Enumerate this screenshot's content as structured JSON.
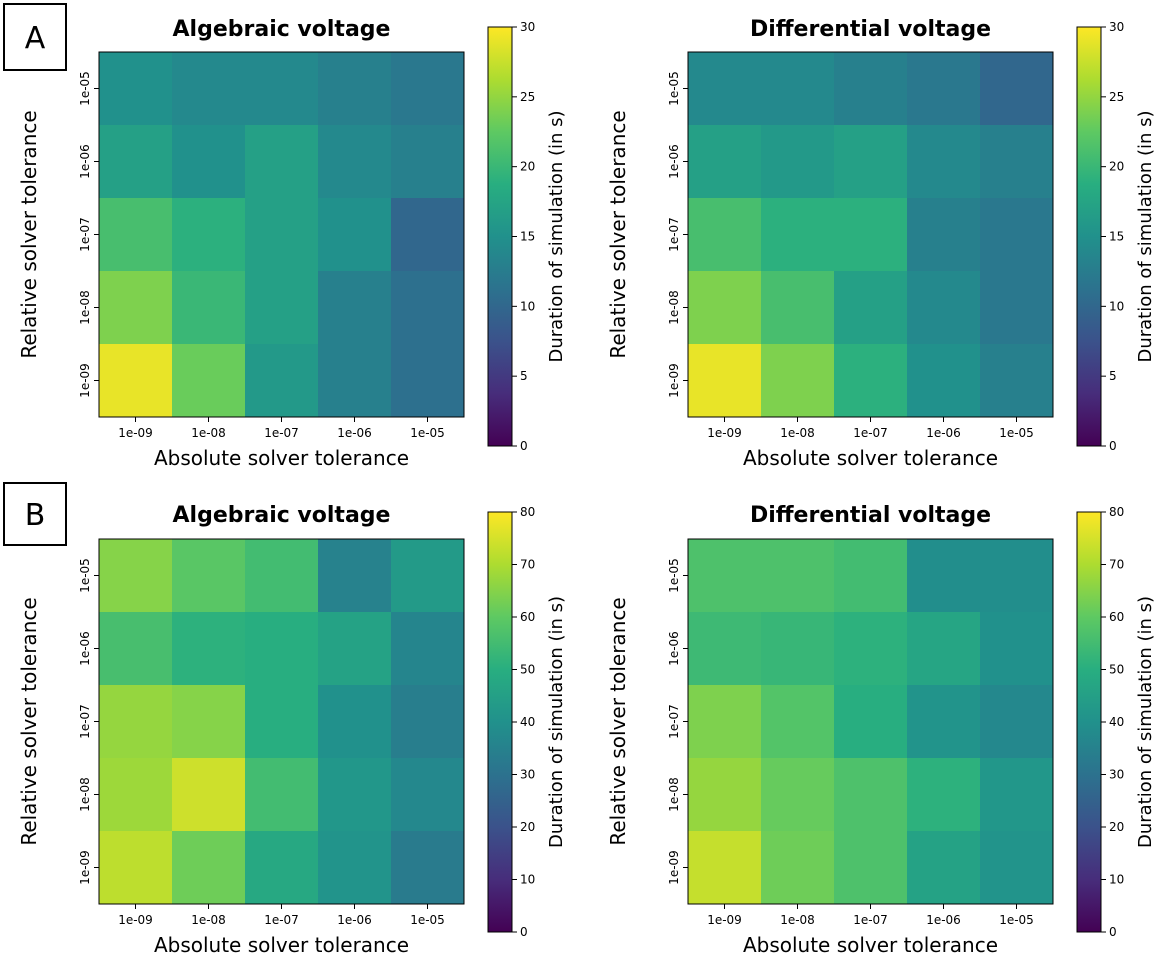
{
  "panels": [
    {
      "letter": "A"
    },
    {
      "letter": "B"
    }
  ],
  "chart_data": [
    {
      "type": "heatmap",
      "panel": "A",
      "title": "Algebraic voltage",
      "xlabel": "Absolute solver tolerance",
      "ylabel": "Relative solver tolerance",
      "x_categories": [
        "1e-09",
        "1e-08",
        "1e-07",
        "1e-06",
        "1e-05"
      ],
      "y_categories": [
        "1e-05",
        "1e-06",
        "1e-07",
        "1e-08",
        "1e-09"
      ],
      "values": [
        [
          15,
          14,
          14,
          13,
          12
        ],
        [
          17,
          15,
          17,
          14,
          13
        ],
        [
          21,
          19,
          17,
          15,
          10
        ],
        [
          24,
          20,
          17,
          13,
          11
        ],
        [
          29,
          23,
          16,
          13,
          11
        ]
      ],
      "colorbar": {
        "label": "Duration of simulation (in s)",
        "range": [
          0,
          30
        ],
        "ticks": [
          0,
          5,
          10,
          15,
          20,
          25,
          30
        ],
        "colormap": "viridis"
      }
    },
    {
      "type": "heatmap",
      "panel": "A",
      "title": "Differential voltage",
      "xlabel": "Absolute solver tolerance",
      "ylabel": "Relative solver tolerance",
      "x_categories": [
        "1e-09",
        "1e-08",
        "1e-07",
        "1e-06",
        "1e-05"
      ],
      "y_categories": [
        "1e-05",
        "1e-06",
        "1e-07",
        "1e-08",
        "1e-09"
      ],
      "values": [
        [
          14,
          14,
          13,
          12,
          10
        ],
        [
          17,
          16,
          17,
          14,
          13
        ],
        [
          21,
          19,
          19,
          13,
          12
        ],
        [
          24,
          21,
          17,
          14,
          12
        ],
        [
          29,
          24,
          19,
          15,
          13
        ]
      ],
      "colorbar": {
        "label": "Duration of simulation (in s)",
        "range": [
          0,
          30
        ],
        "ticks": [
          0,
          5,
          10,
          15,
          20,
          25,
          30
        ],
        "colormap": "viridis"
      }
    },
    {
      "type": "heatmap",
      "panel": "B",
      "title": "Algebraic voltage",
      "xlabel": "Absolute solver tolerance",
      "ylabel": "Relative solver tolerance",
      "x_categories": [
        "1e-09",
        "1e-08",
        "1e-07",
        "1e-06",
        "1e-05"
      ],
      "y_categories": [
        "1e-05",
        "1e-06",
        "1e-07",
        "1e-08",
        "1e-09"
      ],
      "values": [
        [
          65,
          59,
          55,
          35,
          43
        ],
        [
          56,
          51,
          50,
          46,
          36
        ],
        [
          67,
          65,
          50,
          40,
          34
        ],
        [
          68,
          74,
          55,
          42,
          37
        ],
        [
          72,
          62,
          48,
          41,
          33
        ]
      ],
      "colorbar": {
        "label": "Duration of simulation (in s)",
        "range": [
          0,
          80
        ],
        "ticks": [
          0,
          10,
          20,
          30,
          40,
          50,
          60,
          70,
          80
        ],
        "colormap": "viridis"
      }
    },
    {
      "type": "heatmap",
      "panel": "B",
      "title": "Differential voltage",
      "xlabel": "Absolute solver tolerance",
      "ylabel": "Relative solver tolerance",
      "x_categories": [
        "1e-09",
        "1e-08",
        "1e-07",
        "1e-06",
        "1e-05"
      ],
      "y_categories": [
        "1e-05",
        "1e-06",
        "1e-07",
        "1e-08",
        "1e-09"
      ],
      "values": [
        [
          57,
          57,
          55,
          39,
          39
        ],
        [
          54,
          53,
          51,
          47,
          40
        ],
        [
          64,
          58,
          50,
          41,
          37
        ],
        [
          67,
          61,
          57,
          51,
          42
        ],
        [
          73,
          62,
          57,
          46,
          41
        ]
      ],
      "colorbar": {
        "label": "Duration of simulation (in s)",
        "range": [
          0,
          80
        ],
        "ticks": [
          0,
          10,
          20,
          30,
          40,
          50,
          60,
          70,
          80
        ],
        "colormap": "viridis"
      }
    }
  ]
}
